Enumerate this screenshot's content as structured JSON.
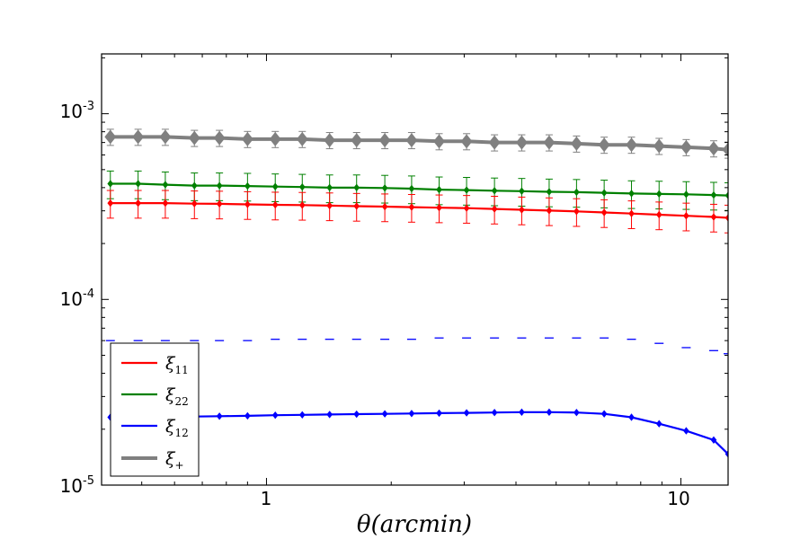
{
  "chart_data": {
    "type": "line",
    "xscale": "log",
    "yscale": "log",
    "xlim": [
      0.4,
      13
    ],
    "ylim": [
      1e-05,
      0.0021
    ],
    "xlabel": "θ(arcmin)",
    "x_ticks": [
      {
        "value": 1,
        "label": "1"
      },
      {
        "value": 10,
        "label": "10"
      }
    ],
    "y_ticks": [
      {
        "value": 1e-05,
        "base": "10",
        "exp": "-5"
      },
      {
        "value": 0.0001,
        "base": "10",
        "exp": "-4"
      },
      {
        "value": 0.001,
        "base": "10",
        "exp": "-3"
      }
    ],
    "x": [
      0.42,
      0.49,
      0.57,
      0.67,
      0.77,
      0.9,
      1.05,
      1.22,
      1.42,
      1.65,
      1.93,
      2.24,
      2.61,
      3.04,
      3.55,
      4.13,
      4.81,
      5.6,
      6.53,
      7.6,
      8.86,
      10.3,
      12.0,
      13.0
    ],
    "series": [
      {
        "name": "ξ+",
        "legend_symbol": "ξ",
        "legend_sub": "+",
        "color": "#808080",
        "marker": "diamond",
        "values": [
          0.00075,
          0.00075,
          0.00075,
          0.00074,
          0.00074,
          0.00073,
          0.00073,
          0.00073,
          0.00072,
          0.00072,
          0.00072,
          0.00072,
          0.00071,
          0.00071,
          0.0007,
          0.0007,
          0.0007,
          0.00069,
          0.00068,
          0.00068,
          0.00067,
          0.00066,
          0.00065,
          0.00064
        ],
        "err_rel": 0.1
      },
      {
        "name": "ξ22",
        "legend_symbol": "ξ",
        "legend_sub": "22",
        "color": "#008000",
        "marker": "dot",
        "values": [
          0.00042,
          0.00042,
          0.000415,
          0.00041,
          0.00041,
          0.000408,
          0.000405,
          0.000403,
          0.0004,
          0.0004,
          0.000398,
          0.000395,
          0.00039,
          0.000388,
          0.000385,
          0.000383,
          0.00038,
          0.000378,
          0.000375,
          0.000372,
          0.00037,
          0.000368,
          0.000365,
          0.000363
        ],
        "err_rel": 0.17
      },
      {
        "name": "ξ11",
        "legend_symbol": "ξ",
        "legend_sub": "11",
        "color": "#ff0000",
        "marker": "dot",
        "values": [
          0.00033,
          0.00033,
          0.00033,
          0.000328,
          0.000327,
          0.000325,
          0.000323,
          0.000322,
          0.00032,
          0.000318,
          0.000316,
          0.000314,
          0.000312,
          0.00031,
          0.000307,
          0.000304,
          0.000301,
          0.000298,
          0.000294,
          0.00029,
          0.000286,
          0.000282,
          0.000278,
          0.000275
        ],
        "err_rel": 0.17
      },
      {
        "name": "ξ12",
        "legend_symbol": "ξ",
        "legend_sub": "12",
        "color": "#0000ff",
        "marker": "dot",
        "values": [
          2.32e-05,
          2.33e-05,
          2.34e-05,
          2.34e-05,
          2.35e-05,
          2.36e-05,
          2.38e-05,
          2.39e-05,
          2.4e-05,
          2.41e-05,
          2.42e-05,
          2.43e-05,
          2.44e-05,
          2.45e-05,
          2.46e-05,
          2.47e-05,
          2.47e-05,
          2.46e-05,
          2.42e-05,
          2.32e-05,
          2.14e-05,
          1.96e-05,
          1.75e-05,
          1.47e-05
        ],
        "upper_dashes": [
          6e-05,
          6e-05,
          6e-05,
          6e-05,
          6e-05,
          6e-05,
          6.1e-05,
          6.1e-05,
          6.1e-05,
          6.1e-05,
          6.1e-05,
          6.1e-05,
          6.2e-05,
          6.2e-05,
          6.2e-05,
          6.2e-05,
          6.2e-05,
          6.2e-05,
          6.2e-05,
          6.1e-05,
          5.8e-05,
          5.5e-05,
          5.3e-05,
          5.1e-05
        ]
      }
    ],
    "legend": {
      "location": "lower-left",
      "order": [
        "ξ11",
        "ξ22",
        "ξ12",
        "ξ+"
      ]
    }
  }
}
